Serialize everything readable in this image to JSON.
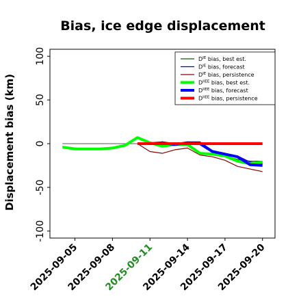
{
  "chart_data": {
    "type": "line",
    "title": "Bias, ice edge displacement",
    "xlabel": "",
    "ylabel": "Displacement bias (km)",
    "ylim": [
      -108,
      108
    ],
    "yticks": [
      "-100",
      "-50",
      "0",
      "50",
      "100"
    ],
    "ytick_values": [
      -100,
      -50,
      0,
      50,
      100
    ],
    "xlim": [
      "2025-09-03",
      "2025-09-21"
    ],
    "xtick_labels": [
      "2025-09-05",
      "2025-09-08",
      "2025-09-11",
      "2025-09-14",
      "2025-09-17",
      "2025-09-20"
    ],
    "highlight_tick": "2025-09-11",
    "highlight_color": "#228b22",
    "grid": false,
    "reference_line": 0,
    "legend_position": "top-right",
    "series": [
      {
        "label_base": "D",
        "label_sup": "IE",
        "label_rest": " bias, best est.",
        "color": "#006400",
        "linewidth": 1.2,
        "x": [
          "2025-09-04",
          "2025-09-05",
          "2025-09-06",
          "2025-09-07",
          "2025-09-08",
          "2025-09-09",
          "2025-09-10",
          "2025-09-11",
          "2025-09-12",
          "2025-09-13",
          "2025-09-14",
          "2025-09-15",
          "2025-09-16",
          "2025-09-17",
          "2025-09-18",
          "2025-09-19",
          "2025-09-20"
        ],
        "y": [
          -3,
          -5,
          -6,
          -6,
          -5,
          -2,
          6,
          1,
          -2,
          -1,
          0,
          -10,
          -12,
          -14,
          -18,
          -20,
          -20
        ]
      },
      {
        "label_base": "D",
        "label_sup": "IE",
        "label_rest": " bias, forecast",
        "color": "#0000cd",
        "linewidth": 1.2,
        "x": [
          "2025-09-11",
          "2025-09-12",
          "2025-09-13",
          "2025-09-14",
          "2025-09-15",
          "2025-09-16",
          "2025-09-17",
          "2025-09-18",
          "2025-09-19",
          "2025-09-20"
        ],
        "y": [
          0,
          2,
          0,
          2,
          2,
          -8,
          -11,
          -14,
          -21,
          -23
        ]
      },
      {
        "label_base": "D",
        "label_sup": "IE",
        "label_rest": " bias, persistence",
        "color": "#8b0000",
        "linewidth": 1.2,
        "x": [
          "2025-09-10",
          "2025-09-11",
          "2025-09-12",
          "2025-09-13",
          "2025-09-14",
          "2025-09-15",
          "2025-09-16",
          "2025-09-17",
          "2025-09-18",
          "2025-09-19",
          "2025-09-20"
        ],
        "y": [
          0,
          -9,
          -11,
          -7,
          -5,
          -13,
          -15,
          -19,
          -26,
          -29,
          -32
        ]
      },
      {
        "label_base": "D",
        "label_sup": "IIEE",
        "label_rest": " bias, best est.",
        "color": "#00ff00",
        "linewidth": 4,
        "x": [
          "2025-09-04",
          "2025-09-05",
          "2025-09-06",
          "2025-09-07",
          "2025-09-08",
          "2025-09-09",
          "2025-09-10",
          "2025-09-11",
          "2025-09-12",
          "2025-09-13",
          "2025-09-14",
          "2025-09-15",
          "2025-09-16",
          "2025-09-17",
          "2025-09-18",
          "2025-09-19",
          "2025-09-20"
        ],
        "y": [
          -4,
          -6,
          -6,
          -6,
          -5,
          -2,
          7,
          1,
          -3,
          -1,
          -1,
          -11,
          -12,
          -14,
          -20,
          -23,
          -21
        ]
      },
      {
        "label_base": "D",
        "label_sup": "IIEE",
        "label_rest": " bias, forecast",
        "color": "#0000ff",
        "linewidth": 4,
        "x": [
          "2025-09-11",
          "2025-09-12",
          "2025-09-13",
          "2025-09-14",
          "2025-09-15",
          "2025-09-16",
          "2025-09-17",
          "2025-09-18",
          "2025-09-19",
          "2025-09-20"
        ],
        "y": [
          0,
          1,
          -1,
          1,
          0,
          -9,
          -12,
          -15,
          -24,
          -25
        ]
      },
      {
        "label_base": "D",
        "label_sup": "IIEE",
        "label_rest": " bias, persistence",
        "color": "#ff0000",
        "linewidth": 4,
        "x": [
          "2025-09-10",
          "2025-09-11",
          "2025-09-12",
          "2025-09-13",
          "2025-09-14",
          "2025-09-15",
          "2025-09-16",
          "2025-09-17",
          "2025-09-18",
          "2025-09-19",
          "2025-09-20"
        ],
        "y": [
          0,
          0,
          0,
          0,
          0,
          0,
          0,
          0,
          0,
          0,
          0
        ]
      }
    ]
  }
}
